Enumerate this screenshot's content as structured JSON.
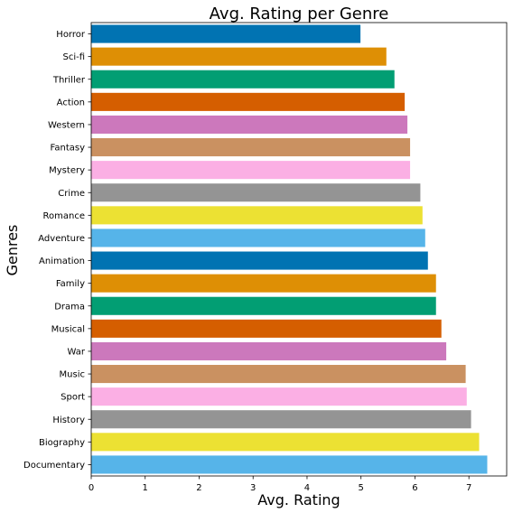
{
  "chart_data": {
    "type": "bar",
    "orientation": "horizontal",
    "title": "Avg. Rating per Genre",
    "xlabel": "Avg. Rating",
    "ylabel": "Genres",
    "xlim": [
      0,
      7.7
    ],
    "xticks": [
      0,
      1,
      2,
      3,
      4,
      5,
      6,
      7
    ],
    "grid": false,
    "categories": [
      "Horror",
      "Sci-fi",
      "Thriller",
      "Action",
      "Western",
      "Fantasy",
      "Mystery",
      "Crime",
      "Romance",
      "Adventure",
      "Animation",
      "Family",
      "Drama",
      "Musical",
      "War",
      "Music",
      "Sport",
      "History",
      "Biography",
      "Documentary"
    ],
    "values": [
      4.99,
      5.47,
      5.62,
      5.81,
      5.86,
      5.91,
      5.91,
      6.1,
      6.14,
      6.19,
      6.24,
      6.39,
      6.39,
      6.49,
      6.58,
      6.94,
      6.96,
      7.04,
      7.19,
      7.34
    ],
    "colors": [
      "#0173b2",
      "#de8f05",
      "#029e73",
      "#d55e00",
      "#cc78bc",
      "#ca9161",
      "#fbafe4",
      "#949494",
      "#ece133",
      "#56b4e9",
      "#0173b2",
      "#de8f05",
      "#029e73",
      "#d55e00",
      "#cc78bc",
      "#ca9161",
      "#fbafe4",
      "#949494",
      "#ece133",
      "#56b4e9"
    ]
  }
}
